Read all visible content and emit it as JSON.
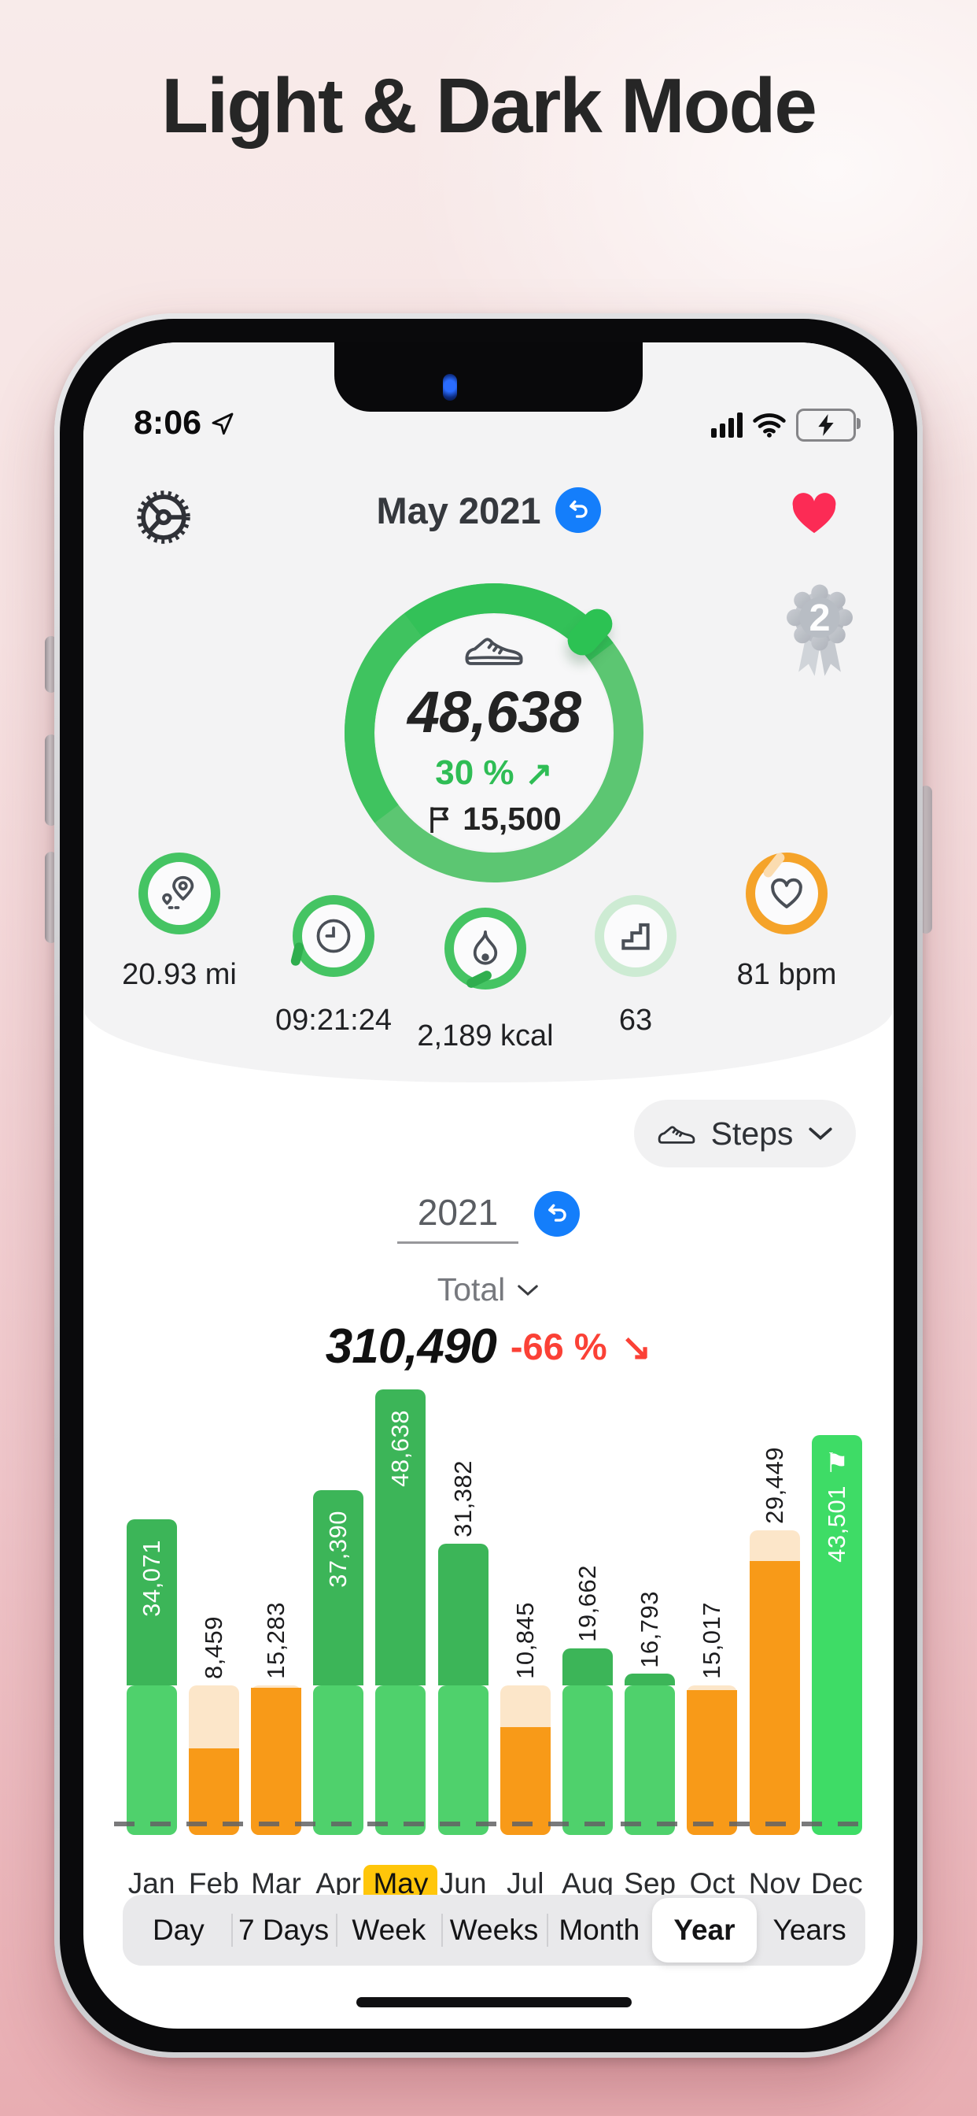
{
  "page_title": "Light & Dark Mode",
  "status_bar": {
    "time": "8:06"
  },
  "header": {
    "period_label": "May 2021"
  },
  "summary": {
    "steps": "48,638",
    "change_pct": "30 %",
    "goal": "15,500",
    "badge_count": "2"
  },
  "stats": {
    "distance": {
      "value": "20.93 mi"
    },
    "duration": {
      "value": "09:21:24"
    },
    "calories": {
      "value": "2,189 kcal"
    },
    "floors": {
      "value": "63"
    },
    "heart_rate": {
      "value": "81 bpm"
    }
  },
  "metric_selector": {
    "label": "Steps"
  },
  "chart_header": {
    "year": "2021",
    "aggregate_label": "Total",
    "total": "310,490",
    "change_pct": "-66 %"
  },
  "chart_data": {
    "type": "bar",
    "title": "Steps per month 2021",
    "categories": [
      "Jan",
      "Feb",
      "Mar",
      "Apr",
      "May",
      "Jun",
      "Jul",
      "Aug",
      "Sep",
      "Oct",
      "Nov",
      "Dec"
    ],
    "values": [
      34071,
      8459,
      15283,
      37390,
      48638,
      31382,
      10845,
      19662,
      16793,
      15017,
      29449,
      43501
    ],
    "value_labels": [
      "34,071",
      "8,459",
      "15,283",
      "37,390",
      "48,638",
      "31,382",
      "10,845",
      "19,662",
      "16,793",
      "15,017",
      "29,449",
      "43,501"
    ],
    "goal": 15500,
    "ylim": [
      0,
      48638
    ],
    "bar_styles": [
      "green",
      "orange",
      "orange",
      "green",
      "green",
      "green",
      "orange",
      "green",
      "green",
      "orange",
      "orange",
      "bright"
    ],
    "cap_to": [
      null,
      15500,
      15500,
      null,
      null,
      null,
      15500,
      null,
      null,
      15500,
      32900,
      null
    ],
    "label_inside": [
      true,
      false,
      false,
      true,
      true,
      false,
      false,
      false,
      false,
      false,
      false,
      true
    ],
    "highlighted_month": "May",
    "flag_month": "Dec",
    "grid": false,
    "legend": false
  },
  "time_range_tabs": {
    "options": [
      "Day",
      "7 Days",
      "Week",
      "Weeks",
      "Month",
      "Year",
      "Years"
    ],
    "selected": "Year"
  },
  "icons": {
    "flag": "⚑",
    "up_right_arrow": "↗",
    "down_right_arrow": "↘"
  },
  "colors": {
    "ring_green": "#3fc35f",
    "bar_green_dark": "#3cb558",
    "bar_green_light": "#4fd16c",
    "bar_green_bright": "#3edc66",
    "bar_orange": "#f89a18",
    "bar_cream": "#fce6c9",
    "heart_ring_orange": "#f5a329",
    "floors_ring_pale": "#cdebd3",
    "accent_blue": "#147efb",
    "heart_red": "#fc2b55",
    "negative_red": "#fb4136",
    "highlight_yellow": "#ffc60a",
    "battery_green": "#35c759"
  }
}
